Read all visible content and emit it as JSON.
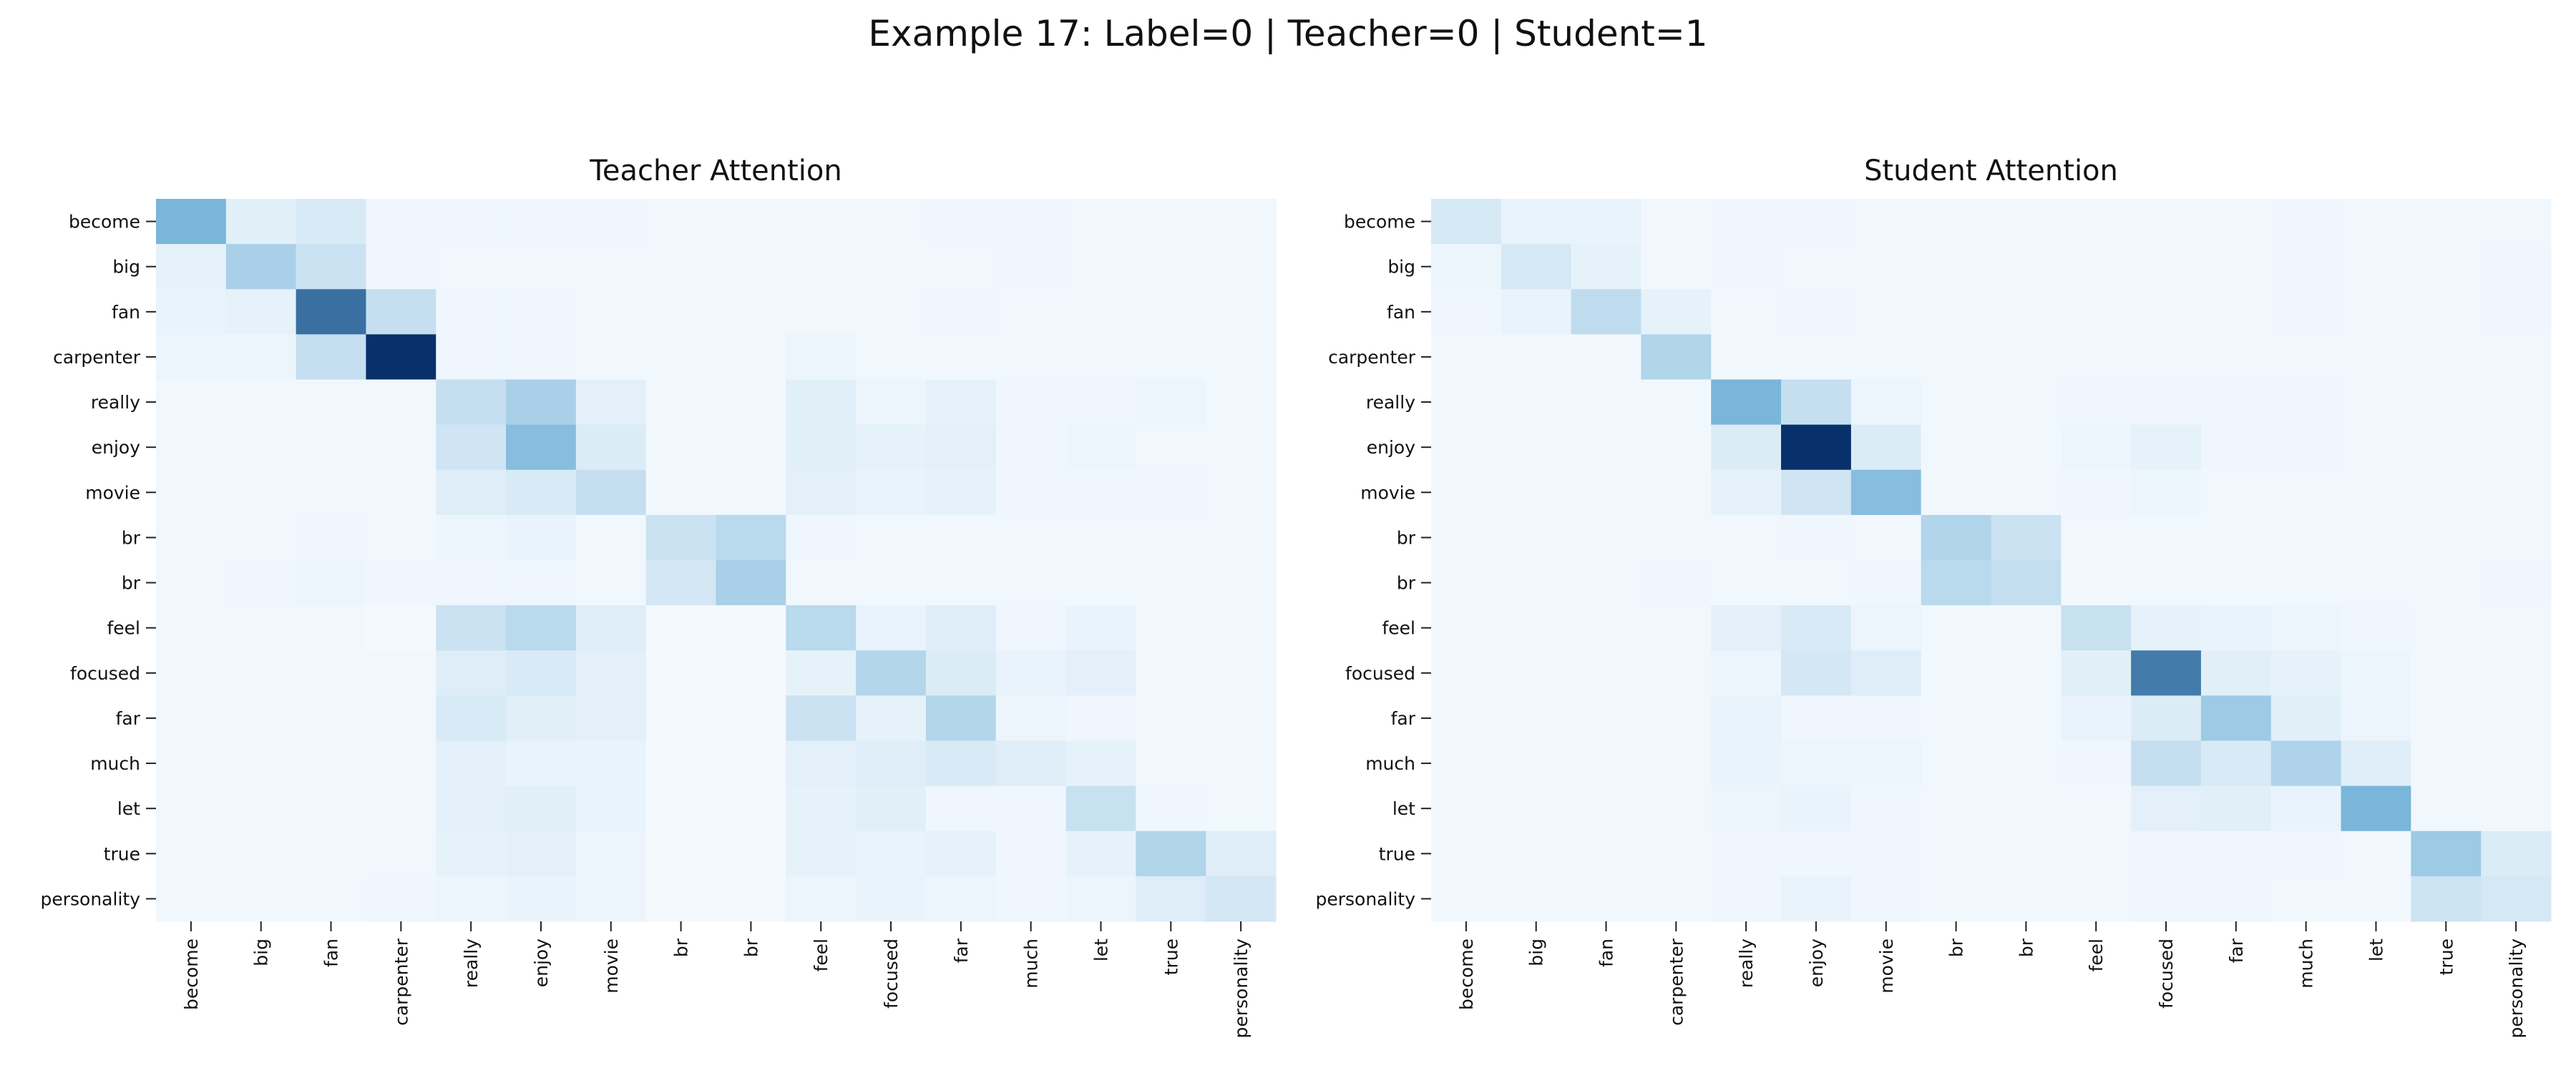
{
  "title": "Example 17: Label=0 | Teacher=0 | Student=1",
  "colormap": {
    "low": "#f7fbff",
    "mid": "#6baed6",
    "high": "#08306b"
  },
  "chart_data": [
    {
      "type": "heatmap",
      "title": "Teacher Attention",
      "tokens": [
        "become",
        "big",
        "fan",
        "carpenter",
        "really",
        "enjoy",
        "movie",
        "br",
        "br",
        "feel",
        "focused",
        "far",
        "much",
        "let",
        "true",
        "personality"
      ],
      "matrix": [
        [
          0.45,
          0.08,
          0.11,
          0.03,
          0.03,
          0.03,
          0.03,
          0.02,
          0.02,
          0.02,
          0.02,
          0.03,
          0.03,
          0.02,
          0.02,
          0.02
        ],
        [
          0.06,
          0.28,
          0.16,
          0.03,
          0.02,
          0.02,
          0.02,
          0.02,
          0.02,
          0.02,
          0.02,
          0.02,
          0.03,
          0.02,
          0.02,
          0.02
        ],
        [
          0.05,
          0.06,
          0.75,
          0.18,
          0.03,
          0.03,
          0.02,
          0.02,
          0.02,
          0.02,
          0.02,
          0.03,
          0.02,
          0.02,
          0.02,
          0.02
        ],
        [
          0.04,
          0.04,
          0.18,
          1.0,
          0.03,
          0.03,
          0.02,
          0.02,
          0.02,
          0.04,
          0.02,
          0.02,
          0.02,
          0.02,
          0.02,
          0.02
        ],
        [
          0.02,
          0.02,
          0.02,
          0.02,
          0.18,
          0.28,
          0.07,
          0.02,
          0.02,
          0.08,
          0.04,
          0.06,
          0.03,
          0.03,
          0.04,
          0.02
        ],
        [
          0.02,
          0.02,
          0.02,
          0.02,
          0.14,
          0.4,
          0.1,
          0.02,
          0.02,
          0.08,
          0.06,
          0.07,
          0.03,
          0.04,
          0.02,
          0.02
        ],
        [
          0.02,
          0.02,
          0.02,
          0.02,
          0.09,
          0.11,
          0.18,
          0.02,
          0.02,
          0.07,
          0.05,
          0.06,
          0.03,
          0.03,
          0.03,
          0.02
        ],
        [
          0.02,
          0.02,
          0.03,
          0.02,
          0.04,
          0.05,
          0.02,
          0.16,
          0.22,
          0.03,
          0.02,
          0.02,
          0.02,
          0.02,
          0.02,
          0.02
        ],
        [
          0.02,
          0.03,
          0.04,
          0.03,
          0.03,
          0.03,
          0.02,
          0.13,
          0.28,
          0.02,
          0.02,
          0.02,
          0.02,
          0.02,
          0.02,
          0.02
        ],
        [
          0.02,
          0.02,
          0.02,
          0.01,
          0.16,
          0.22,
          0.09,
          0.01,
          0.01,
          0.22,
          0.05,
          0.09,
          0.03,
          0.05,
          0.02,
          0.02
        ],
        [
          0.02,
          0.02,
          0.02,
          0.02,
          0.09,
          0.11,
          0.07,
          0.01,
          0.01,
          0.06,
          0.24,
          0.1,
          0.05,
          0.07,
          0.02,
          0.02
        ],
        [
          0.02,
          0.02,
          0.02,
          0.02,
          0.11,
          0.08,
          0.07,
          0.01,
          0.01,
          0.16,
          0.06,
          0.24,
          0.04,
          0.03,
          0.02,
          0.02
        ],
        [
          0.02,
          0.02,
          0.02,
          0.02,
          0.07,
          0.05,
          0.05,
          0.01,
          0.01,
          0.07,
          0.09,
          0.11,
          0.09,
          0.06,
          0.02,
          0.02
        ],
        [
          0.02,
          0.02,
          0.02,
          0.02,
          0.07,
          0.08,
          0.05,
          0.01,
          0.01,
          0.06,
          0.08,
          0.03,
          0.03,
          0.17,
          0.03,
          0.02
        ],
        [
          0.02,
          0.02,
          0.02,
          0.02,
          0.06,
          0.07,
          0.04,
          0.01,
          0.01,
          0.06,
          0.05,
          0.06,
          0.03,
          0.06,
          0.25,
          0.09
        ],
        [
          0.02,
          0.02,
          0.02,
          0.03,
          0.04,
          0.05,
          0.04,
          0.01,
          0.01,
          0.04,
          0.05,
          0.04,
          0.03,
          0.04,
          0.09,
          0.13
        ]
      ]
    },
    {
      "type": "heatmap",
      "title": "Student Attention",
      "tokens": [
        "become",
        "big",
        "fan",
        "carpenter",
        "really",
        "enjoy",
        "movie",
        "br",
        "br",
        "feel",
        "focused",
        "far",
        "much",
        "let",
        "true",
        "personality"
      ],
      "matrix": [
        [
          0.12,
          0.05,
          0.05,
          0.02,
          0.03,
          0.03,
          0.02,
          0.02,
          0.02,
          0.02,
          0.02,
          0.02,
          0.03,
          0.02,
          0.02,
          0.02
        ],
        [
          0.04,
          0.12,
          0.06,
          0.02,
          0.03,
          0.02,
          0.02,
          0.02,
          0.02,
          0.02,
          0.02,
          0.02,
          0.03,
          0.02,
          0.02,
          0.03
        ],
        [
          0.03,
          0.05,
          0.2,
          0.06,
          0.02,
          0.03,
          0.02,
          0.02,
          0.02,
          0.02,
          0.02,
          0.02,
          0.03,
          0.02,
          0.02,
          0.03
        ],
        [
          0.02,
          0.02,
          0.02,
          0.25,
          0.02,
          0.02,
          0.02,
          0.02,
          0.02,
          0.02,
          0.02,
          0.02,
          0.02,
          0.02,
          0.02,
          0.02
        ],
        [
          0.02,
          0.02,
          0.02,
          0.02,
          0.45,
          0.18,
          0.04,
          0.02,
          0.02,
          0.03,
          0.03,
          0.03,
          0.03,
          0.02,
          0.02,
          0.02
        ],
        [
          0.02,
          0.02,
          0.02,
          0.02,
          0.1,
          1.0,
          0.1,
          0.02,
          0.02,
          0.04,
          0.06,
          0.03,
          0.03,
          0.02,
          0.02,
          0.02
        ],
        [
          0.02,
          0.02,
          0.02,
          0.02,
          0.06,
          0.14,
          0.4,
          0.02,
          0.02,
          0.03,
          0.04,
          0.02,
          0.02,
          0.02,
          0.02,
          0.02
        ],
        [
          0.02,
          0.02,
          0.02,
          0.02,
          0.02,
          0.03,
          0.02,
          0.25,
          0.16,
          0.02,
          0.02,
          0.02,
          0.02,
          0.02,
          0.02,
          0.02
        ],
        [
          0.02,
          0.02,
          0.02,
          0.03,
          0.02,
          0.02,
          0.03,
          0.22,
          0.19,
          0.02,
          0.02,
          0.02,
          0.02,
          0.02,
          0.02,
          0.03
        ],
        [
          0.02,
          0.02,
          0.02,
          0.02,
          0.07,
          0.11,
          0.04,
          0.02,
          0.02,
          0.17,
          0.06,
          0.05,
          0.04,
          0.03,
          0.02,
          0.02
        ],
        [
          0.02,
          0.02,
          0.02,
          0.02,
          0.04,
          0.13,
          0.09,
          0.02,
          0.02,
          0.08,
          0.7,
          0.08,
          0.06,
          0.04,
          0.02,
          0.02
        ],
        [
          0.02,
          0.02,
          0.02,
          0.02,
          0.05,
          0.03,
          0.03,
          0.02,
          0.02,
          0.05,
          0.1,
          0.32,
          0.08,
          0.04,
          0.02,
          0.02
        ],
        [
          0.02,
          0.02,
          0.02,
          0.02,
          0.05,
          0.04,
          0.04,
          0.02,
          0.02,
          0.03,
          0.18,
          0.11,
          0.26,
          0.09,
          0.02,
          0.02
        ],
        [
          0.02,
          0.02,
          0.02,
          0.02,
          0.04,
          0.05,
          0.03,
          0.02,
          0.02,
          0.02,
          0.07,
          0.08,
          0.05,
          0.45,
          0.02,
          0.02
        ],
        [
          0.02,
          0.02,
          0.02,
          0.02,
          0.03,
          0.03,
          0.03,
          0.02,
          0.02,
          0.02,
          0.03,
          0.03,
          0.03,
          0.02,
          0.32,
          0.1
        ],
        [
          0.02,
          0.02,
          0.02,
          0.02,
          0.03,
          0.05,
          0.03,
          0.02,
          0.02,
          0.02,
          0.03,
          0.03,
          0.02,
          0.02,
          0.15,
          0.12
        ]
      ]
    }
  ]
}
